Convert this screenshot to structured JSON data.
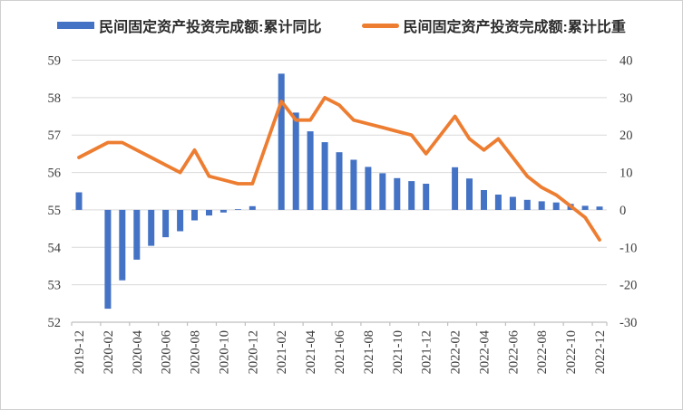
{
  "legend": [
    {
      "label": "民间固定资产投资完成额:累计同比",
      "color": "#4472C4",
      "marker": "bar"
    },
    {
      "label": "民间固定资产投资完成额:累计比重",
      "color": "#ED7D31",
      "marker": "line"
    }
  ],
  "chart_data": {
    "type": "bar",
    "subtype": "bar+line combo, dual axis",
    "title": "",
    "xlabel": "",
    "ylabel_left": "",
    "ylabel_right": "",
    "categories": [
      "2019-12",
      "2020-02",
      "2020-03",
      "2020-04",
      "2020-05",
      "2020-06",
      "2020-07",
      "2020-08",
      "2020-09",
      "2020-10",
      "2020-11",
      "2020-12",
      "2021-02",
      "2021-03",
      "2021-04",
      "2021-05",
      "2021-06",
      "2021-07",
      "2021-08",
      "2021-09",
      "2021-10",
      "2021-11",
      "2021-12",
      "2022-02",
      "2022-03",
      "2022-04",
      "2022-05",
      "2022-06",
      "2022-07",
      "2022-08",
      "2022-09",
      "2022-10",
      "2022-11",
      "2022-12"
    ],
    "series": [
      {
        "name": "民间固定资产投资完成额:累计同比",
        "type": "bar",
        "axis": "right",
        "color": "#4472C4",
        "values": [
          4.7,
          -26.4,
          -18.8,
          -13.3,
          -9.6,
          -7.3,
          -5.7,
          -2.8,
          -1.5,
          -0.7,
          0.2,
          1.0,
          36.4,
          26.0,
          21.0,
          18.1,
          15.4,
          13.4,
          11.5,
          9.8,
          8.5,
          7.7,
          7.0,
          11.4,
          8.4,
          5.3,
          4.1,
          3.5,
          2.7,
          2.3,
          2.0,
          1.6,
          1.1,
          0.9
        ]
      },
      {
        "name": "民间固定资产投资完成额:累计比重",
        "type": "line",
        "axis": "left",
        "color": "#ED7D31",
        "values": [
          56.4,
          56.8,
          56.8,
          56.6,
          56.4,
          56.2,
          56.0,
          56.6,
          55.9,
          55.8,
          55.7,
          55.7,
          57.9,
          57.4,
          57.4,
          58.0,
          57.8,
          57.4,
          57.3,
          57.2,
          57.1,
          57.0,
          56.5,
          57.5,
          56.9,
          56.6,
          56.9,
          56.4,
          55.9,
          55.6,
          55.4,
          55.1,
          54.8,
          54.2
        ]
      }
    ],
    "left_axis": {
      "min": 52,
      "max": 59,
      "ticks": [
        52,
        53,
        54,
        55,
        56,
        57,
        58,
        59
      ]
    },
    "right_axis": {
      "min": -30,
      "max": 40,
      "ticks": [
        -30,
        -20,
        -10,
        0,
        10,
        20,
        30,
        40
      ]
    },
    "x_tick_labels": [
      "2019-12",
      "2020-02",
      "2020-04",
      "2020-06",
      "2020-08",
      "2020-10",
      "2020-12",
      "2021-02",
      "2021-04",
      "2021-06",
      "2021-08",
      "2021-10",
      "2021-12",
      "2022-02",
      "2022-04",
      "2022-06",
      "2022-08",
      "2022-10",
      "2022-12"
    ],
    "x_note": "monthly category axis with empty January slots (no data published for Jan)",
    "grid": true,
    "gridline_color": "#D9D9D9",
    "axis_line_color": "#BFBFBF",
    "legend_position": "top"
  }
}
